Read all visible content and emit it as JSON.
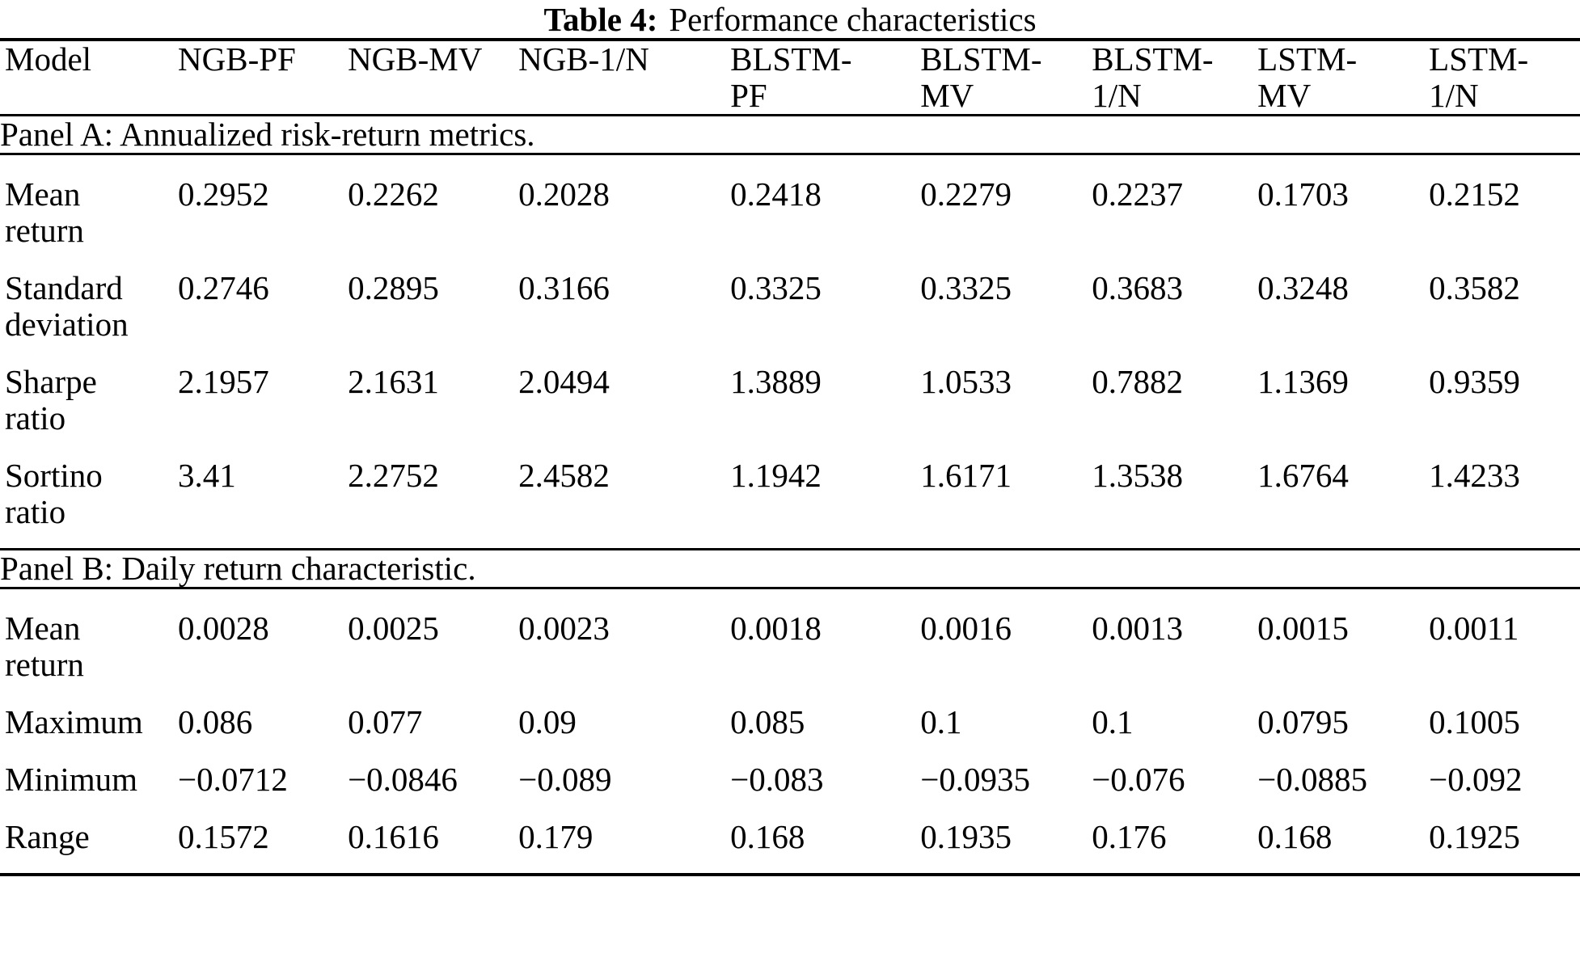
{
  "table": {
    "title_bold": "Table 4:",
    "title_rest": "Performance characteristics",
    "columns": [
      "Model",
      "NGB-PF",
      "NGB-MV",
      "NGB-1/N",
      "BLSTM-\nPF",
      "BLSTM-\nMV",
      "BLSTM-\n1/N",
      "LSTM-\nMV",
      "LSTM-\n1/N"
    ],
    "panels": [
      {
        "heading": "Panel A: Annualized risk-return metrics.",
        "rows": [
          {
            "label": "Mean\nreturn",
            "values": [
              "0.2952",
              "0.2262",
              "0.2028",
              "0.2418",
              "0.2279",
              "0.2237",
              "0.1703",
              "0.2152"
            ]
          },
          {
            "label": "Standard\ndeviation",
            "values": [
              "0.2746",
              "0.2895",
              "0.3166",
              "0.3325",
              "0.3325",
              "0.3683",
              "0.3248",
              "0.3582"
            ]
          },
          {
            "label": "Sharpe\nratio",
            "values": [
              "2.1957",
              "2.1631",
              "2.0494",
              "1.3889",
              "1.0533",
              "0.7882",
              "1.1369",
              "0.9359"
            ]
          },
          {
            "label": "Sortino\nratio",
            "values": [
              "3.41",
              "2.2752",
              "2.4582",
              "1.1942",
              "1.6171",
              "1.3538",
              "1.6764",
              "1.4233"
            ]
          }
        ]
      },
      {
        "heading": "Panel B: Daily return characteristic.",
        "rows": [
          {
            "label": "Mean\nreturn",
            "values": [
              "0.0028",
              "0.0025",
              "0.0023",
              "0.0018",
              "0.0016",
              "0.0013",
              "0.0015",
              "0.0011"
            ]
          },
          {
            "label": "Maximum",
            "values": [
              "0.086",
              "0.077",
              "0.09",
              "0.085",
              "0.1",
              "0.1",
              "0.0795",
              "0.1005"
            ]
          },
          {
            "label": "Minimum",
            "values": [
              "−0.0712",
              "−0.0846",
              "−0.089",
              "−0.083",
              "−0.0935",
              "−0.076",
              "−0.0885",
              "−0.092"
            ]
          },
          {
            "label": "Range",
            "values": [
              "0.1572",
              "0.1616",
              "0.179",
              "0.168",
              "0.1935",
              "0.176",
              "0.168",
              "0.1925"
            ]
          }
        ]
      }
    ]
  }
}
